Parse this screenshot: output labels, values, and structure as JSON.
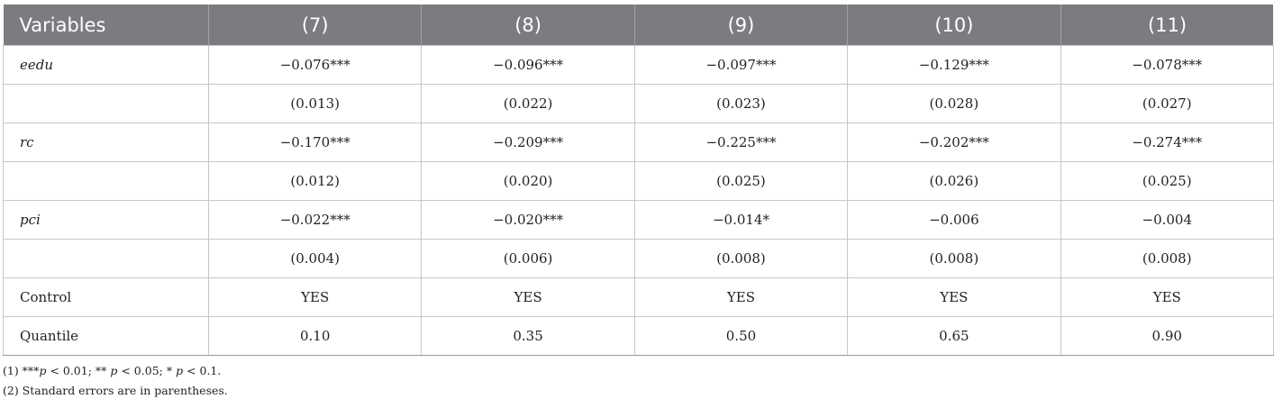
{
  "table": {
    "header": [
      "Variables",
      "(7)",
      "(8)",
      "(9)",
      "(10)",
      "(11)"
    ],
    "rows": [
      {
        "label": "eedu",
        "italic": true,
        "cells": [
          "−0.076***",
          "−0.096***",
          "−0.097***",
          "−0.129***",
          "−0.078***"
        ]
      },
      {
        "label": "",
        "italic": false,
        "cells": [
          "(0.013)",
          "(0.022)",
          "(0.023)",
          "(0.028)",
          "(0.027)"
        ]
      },
      {
        "label": "rc",
        "italic": true,
        "cells": [
          "−0.170***",
          "−0.209***",
          "−0.225***",
          "−0.202***",
          "−0.274***"
        ]
      },
      {
        "label": "",
        "italic": false,
        "cells": [
          "(0.012)",
          "(0.020)",
          "(0.025)",
          "(0.026)",
          "(0.025)"
        ]
      },
      {
        "label": "pci",
        "italic": true,
        "cells": [
          "−0.022***",
          "−0.020***",
          "−0.014*",
          "−0.006",
          "−0.004"
        ]
      },
      {
        "label": "",
        "italic": false,
        "cells": [
          "(0.004)",
          "(0.006)",
          "(0.008)",
          "(0.008)",
          "(0.008)"
        ]
      },
      {
        "label": "Control",
        "italic": false,
        "cells": [
          "YES",
          "YES",
          "YES",
          "YES",
          "YES"
        ]
      },
      {
        "label": "Quantile",
        "italic": false,
        "cells": [
          "0.10",
          "0.35",
          "0.50",
          "0.65",
          "0.90"
        ]
      }
    ]
  },
  "notes": {
    "note1": {
      "prefix": "(1) ***",
      "p1": "p",
      "t1": " < 0.01; ** ",
      "p2": "p",
      "t2": " < 0.05; * ",
      "p3": "p",
      "t3": " < 0.1."
    },
    "note2": "(2) Standard errors are in parentheses."
  }
}
